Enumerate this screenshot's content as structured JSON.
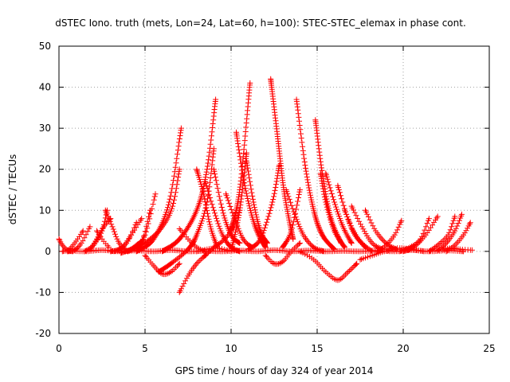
{
  "chart_data": {
    "type": "scatter",
    "title": "dSTEC Iono. truth (mets, Lon=24, Lat=60, h=100): STEC-STEC_elemax in phase cont.",
    "xlabel": "GPS time / hours of day 324 of year 2014",
    "ylabel": "dSTEC  / TECUs",
    "xlim": [
      0,
      25
    ],
    "ylim": [
      -20,
      50
    ],
    "xticks": [
      "0",
      "5",
      "10",
      "15",
      "20",
      "25"
    ],
    "yticks": [
      "-20",
      "-10",
      "0",
      "10",
      "20",
      "30",
      "40",
      "50"
    ],
    "grid": true,
    "marker": "plus",
    "color": "#ff0000",
    "arcs": [
      {
        "x": [
          0.0,
          0.2,
          0.5,
          0.8
        ],
        "y": [
          3,
          1.5,
          0.3,
          0
        ]
      },
      {
        "x": [
          0.2,
          0.6,
          1.0,
          1.4
        ],
        "y": [
          0,
          0.5,
          2.5,
          5
        ]
      },
      {
        "x": [
          0.5,
          0.9,
          1.3,
          1.8
        ],
        "y": [
          0,
          0.3,
          2,
          6
        ]
      },
      {
        "x": [
          1.5,
          2.0,
          2.5,
          2.8
        ],
        "y": [
          0,
          1.5,
          5,
          10
        ]
      },
      {
        "x": [
          1.8,
          2.2,
          2.6,
          3.0
        ],
        "y": [
          0.3,
          3,
          6,
          8
        ]
      },
      {
        "x": [
          2.7,
          3.1,
          3.5,
          4.0
        ],
        "y": [
          10,
          6,
          2,
          0
        ]
      },
      {
        "x": [
          2.2,
          2.5,
          2.9
        ],
        "y": [
          5,
          3,
          1
        ]
      },
      {
        "x": [
          3.0,
          3.5,
          4.0,
          4.5
        ],
        "y": [
          0,
          0.5,
          2.5,
          7
        ]
      },
      {
        "x": [
          3.2,
          3.7,
          4.2,
          4.8
        ],
        "y": [
          0,
          1,
          4,
          8
        ]
      },
      {
        "x": [
          3.8,
          4.3,
          4.8,
          5.3
        ],
        "y": [
          0,
          0.5,
          2,
          10
        ]
      },
      {
        "x": [
          4.0,
          4.5,
          5.0,
          5.6
        ],
        "y": [
          0,
          1.5,
          4,
          14
        ]
      },
      {
        "x": [
          3.6,
          4.5,
          5.3,
          6.0,
          6.6,
          7.0
        ],
        "y": [
          -0.4,
          1,
          3,
          6,
          11,
          20
        ]
      },
      {
        "x": [
          4.5,
          5.5,
          6.4,
          7.1
        ],
        "y": [
          0,
          3,
          12,
          30
        ]
      },
      {
        "x": [
          5.0,
          5.5,
          6.0,
          6.5,
          7.0
        ],
        "y": [
          -1,
          -3.5,
          -5.5,
          -5,
          -3
        ]
      },
      {
        "x": [
          5.8,
          6.5,
          7.5,
          8.0,
          8.6,
          9.0
        ],
        "y": [
          -5,
          -3,
          0.5,
          4,
          12,
          25
        ]
      },
      {
        "x": [
          6.0,
          7.0,
          8.0,
          8.6,
          9.1
        ],
        "y": [
          0,
          3,
          10,
          20,
          37
        ]
      },
      {
        "x": [
          7.0,
          7.5,
          8.0,
          8.5
        ],
        "y": [
          -10,
          -6,
          -3,
          -1
        ]
      },
      {
        "x": [
          8.5,
          9.0,
          9.5,
          10.0,
          10.5
        ],
        "y": [
          -1,
          1,
          2.5,
          5,
          10
        ]
      },
      {
        "x": [
          7.0,
          7.5,
          8.0,
          8.5
        ],
        "y": [
          5.5,
          3,
          1,
          0
        ]
      },
      {
        "x": [
          8.0,
          8.4,
          8.8,
          9.2
        ],
        "y": [
          20,
          14,
          6,
          1
        ]
      },
      {
        "x": [
          8.5,
          9.0,
          9.5,
          10.0,
          10.5
        ],
        "y": [
          17,
          10,
          4,
          1,
          0
        ]
      },
      {
        "x": [
          9.0,
          9.5,
          10.0,
          10.5
        ],
        "y": [
          20,
          10,
          4,
          2
        ]
      },
      {
        "x": [
          9.7,
          10.2,
          10.7,
          11.2
        ],
        "y": [
          14,
          8,
          3,
          1
        ]
      },
      {
        "x": [
          8.0,
          8.6,
          9.2,
          9.8
        ],
        "y": [
          0,
          0.5,
          0.8,
          0.2
        ]
      },
      {
        "x": [
          10.0,
          10.5,
          10.9
        ],
        "y": [
          0,
          10,
          24
        ]
      },
      {
        "x": [
          10.0,
          10.5,
          11.1
        ],
        "y": [
          5,
          15,
          41
        ]
      },
      {
        "x": [
          10.3,
          10.8,
          11.4,
          12.0
        ],
        "y": [
          29,
          16,
          6,
          1
        ]
      },
      {
        "x": [
          11.0,
          11.7,
          12.4,
          12.8
        ],
        "y": [
          0.5,
          3,
          12,
          21
        ]
      },
      {
        "x": [
          10.9,
          11.3,
          11.7,
          12.1
        ],
        "y": [
          22,
          12,
          5,
          2
        ]
      },
      {
        "x": [
          12.3,
          12.7,
          13.1,
          13.6
        ],
        "y": [
          42,
          28,
          14,
          3
        ]
      },
      {
        "x": [
          12.0,
          12.5,
          13.0,
          13.5,
          14.0
        ],
        "y": [
          -1,
          -3,
          -2.5,
          0,
          2
        ]
      },
      {
        "x": [
          13.2,
          13.7,
          14.2,
          14.8,
          15.4
        ],
        "y": [
          15,
          9,
          4,
          1,
          0
        ]
      },
      {
        "x": [
          13.0,
          13.5,
          14.0
        ],
        "y": [
          1,
          5,
          15
        ]
      },
      {
        "x": [
          13.8,
          14.3,
          14.8,
          15.3,
          16.0
        ],
        "y": [
          37,
          21,
          10,
          4,
          0.5
        ]
      },
      {
        "x": [
          14.9,
          15.3,
          15.8,
          16.4
        ],
        "y": [
          32,
          19,
          8,
          2
        ]
      },
      {
        "x": [
          15.2,
          15.5,
          16.0,
          16.6
        ],
        "y": [
          19,
          12,
          5,
          1
        ]
      },
      {
        "x": [
          14.0,
          14.8,
          15.5,
          16.2,
          16.8,
          17.3
        ],
        "y": [
          0,
          -2,
          -5,
          -7,
          -5,
          -3
        ]
      },
      {
        "x": [
          15.5,
          16.0,
          16.5,
          17.0
        ],
        "y": [
          19,
          12,
          6,
          2
        ]
      },
      {
        "x": [
          16.2,
          16.7,
          17.2,
          17.8
        ],
        "y": [
          16,
          9,
          4,
          1
        ]
      },
      {
        "x": [
          16.6,
          17.1,
          17.6,
          18.2
        ],
        "y": [
          10,
          5,
          2,
          0
        ]
      },
      {
        "x": [
          17.0,
          17.6,
          18.2,
          18.8
        ],
        "y": [
          11,
          6,
          2,
          0.5
        ]
      },
      {
        "x": [
          17.5,
          18.2,
          18.9,
          19.6
        ],
        "y": [
          -2,
          -1,
          0,
          0.5
        ]
      },
      {
        "x": [
          17.8,
          18.4,
          19.0,
          19.6
        ],
        "y": [
          10,
          5,
          2,
          0.5
        ]
      },
      {
        "x": [
          18.5,
          19.0,
          19.5,
          19.9
        ],
        "y": [
          0,
          1.5,
          4,
          7.5
        ]
      },
      {
        "x": [
          19.0,
          19.8,
          20.5,
          21.2
        ],
        "y": [
          0.5,
          0.8,
          0.5,
          0
        ]
      },
      {
        "x": [
          19.8,
          20.4,
          21.0,
          21.5
        ],
        "y": [
          0,
          1,
          3,
          8
        ]
      },
      {
        "x": [
          20.0,
          20.6,
          21.3,
          22.0
        ],
        "y": [
          0,
          1,
          4,
          8.5
        ]
      },
      {
        "x": [
          21.5,
          22.0,
          22.6,
          23.0
        ],
        "y": [
          0,
          1.5,
          4,
          8.5
        ]
      },
      {
        "x": [
          22.0,
          22.5,
          23.0,
          23.4
        ],
        "y": [
          0.2,
          2,
          5,
          9
        ]
      },
      {
        "x": [
          22.5,
          23.0,
          23.5,
          23.9
        ],
        "y": [
          0,
          1.5,
          4,
          7
        ]
      },
      {
        "x": [
          22.3,
          22.8,
          23.3,
          24.0
        ],
        "y": [
          0.5,
          0.8,
          0.5,
          0.3
        ]
      },
      {
        "x": [
          0.5,
          1.5,
          2.5,
          3.5,
          4.5,
          5.5,
          6.5,
          7.5,
          8.5,
          9.5,
          10.5,
          11.5,
          12.5,
          13.5,
          14.5,
          15.5,
          16.5,
          17.5,
          18.5,
          19.5,
          20.5,
          21.5,
          22.5,
          23.5
        ],
        "y": [
          0.2,
          0,
          0.3,
          0,
          0.2,
          0,
          0.3,
          0,
          0.1,
          0,
          0.2,
          0,
          0.3,
          0,
          0.2,
          0,
          0.1,
          0,
          0.2,
          0,
          0.3,
          0,
          0.2,
          0
        ]
      }
    ]
  }
}
